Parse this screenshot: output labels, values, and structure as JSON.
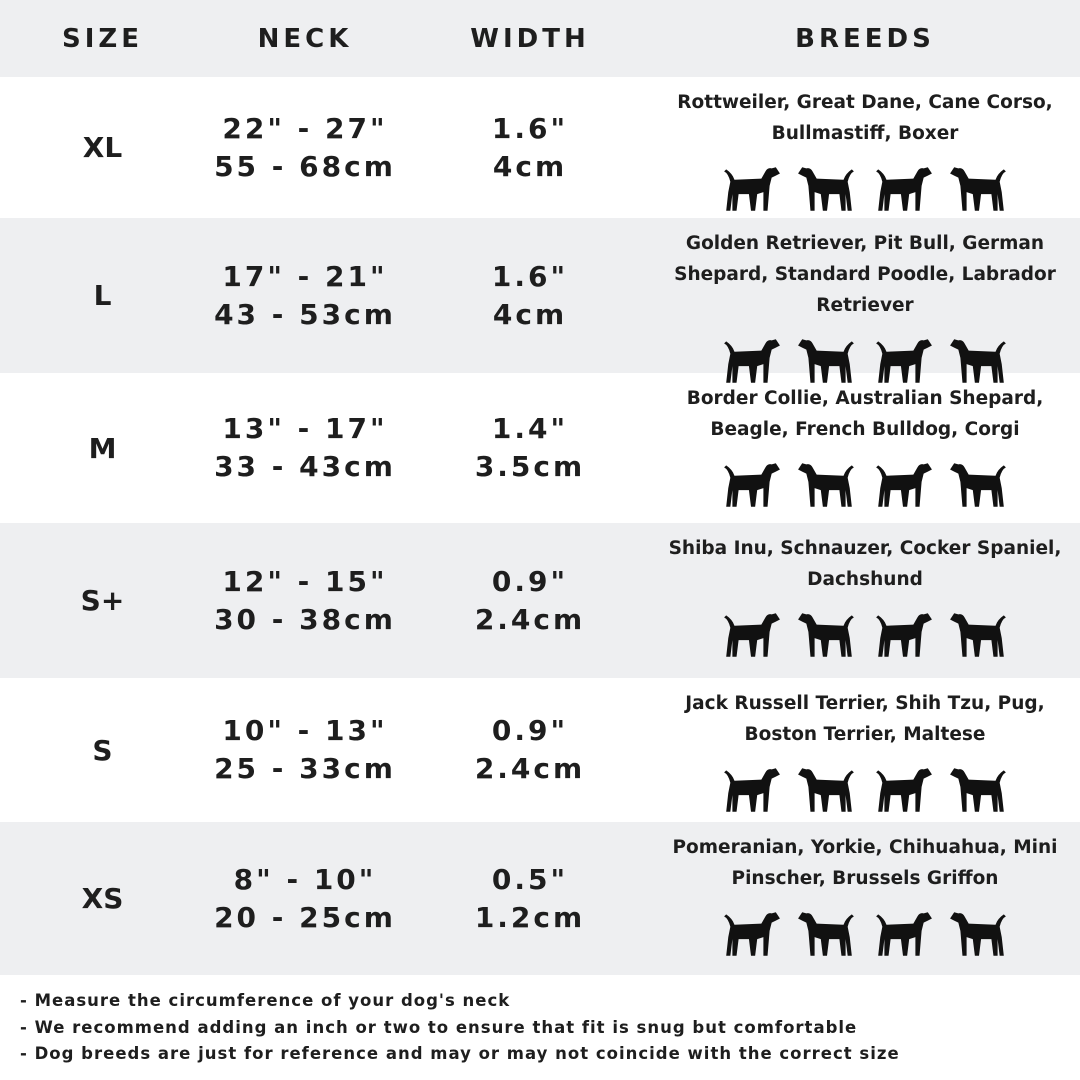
{
  "header": {
    "size": "SIZE",
    "neck": "NECK",
    "width": "WIDTH",
    "breeds": "BREEDS"
  },
  "rows": [
    {
      "size": "XL",
      "neck_in": "22\" - 27\"",
      "neck_cm": "55 - 68cm",
      "width_in": "1.6\"",
      "width_cm": "4cm",
      "breeds": "Rottweiler, Great Dane, Cane Corso, Bullmastiff, Boxer",
      "icons": [
        "rottweiler-icon",
        "great-dane-icon",
        "cane-corso-icon",
        "bullmastiff-icon"
      ]
    },
    {
      "size": "L",
      "neck_in": "17\" - 21\"",
      "neck_cm": "43 - 53cm",
      "width_in": "1.6\"",
      "width_cm": "4cm",
      "breeds": "Golden Retriever, Pit Bull, German Shepard, Standard Poodle, Labrador Retriever",
      "icons": [
        "golden-retriever-icon",
        "labrador-icon",
        "poodle-icon",
        "german-shepard-icon"
      ]
    },
    {
      "size": "M",
      "neck_in": "13\" - 17\"",
      "neck_cm": "33 - 43cm",
      "width_in": "1.4\"",
      "width_cm": "3.5cm",
      "breeds": "Border Collie, Australian Shepard, Beagle, French Bulldog, Corgi",
      "icons": [
        "border-collie-icon",
        "beagle-icon",
        "french-bulldog-icon",
        "corgi-icon"
      ]
    },
    {
      "size": "S+",
      "neck_in": "12\" - 15\"",
      "neck_cm": "30 - 38cm",
      "width_in": "0.9\"",
      "width_cm": "2.4cm",
      "breeds": "Shiba Inu, Schnauzer, Cocker Spaniel, Dachshund",
      "icons": [
        "shiba-inu-icon",
        "schnauzer-icon",
        "cocker-spaniel-icon",
        "dachshund-icon"
      ]
    },
    {
      "size": "S",
      "neck_in": "10\" - 13\"",
      "neck_cm": "25 - 33cm",
      "width_in": "0.9\"",
      "width_cm": "2.4cm",
      "breeds": "Jack Russell Terrier, Shih Tzu, Pug, Boston Terrier, Maltese",
      "icons": [
        "jack-russell-icon",
        "shih-tzu-icon",
        "pug-icon",
        "maltese-icon"
      ]
    },
    {
      "size": "XS",
      "neck_in": "8\" - 10\"",
      "neck_cm": "20 - 25cm",
      "width_in": "0.5\"",
      "width_cm": "1.2cm",
      "breeds": "Pomeranian, Yorkie, Chihuahua, Mini Pinscher, Brussels Griffon",
      "icons": [
        "pomeranian-icon",
        "yorkie-icon",
        "chihuahua-icon",
        "mini-pinscher-icon"
      ]
    }
  ],
  "notes": [
    "- Measure the circumference of your dog's neck",
    "- We recommend adding an inch or two to ensure that fit is snug but comfortable",
    "- Dog breeds are just for reference and may or may not coincide with the correct size"
  ],
  "colors": {
    "stripe": "#eeeff1",
    "text": "#1e1e1e"
  }
}
